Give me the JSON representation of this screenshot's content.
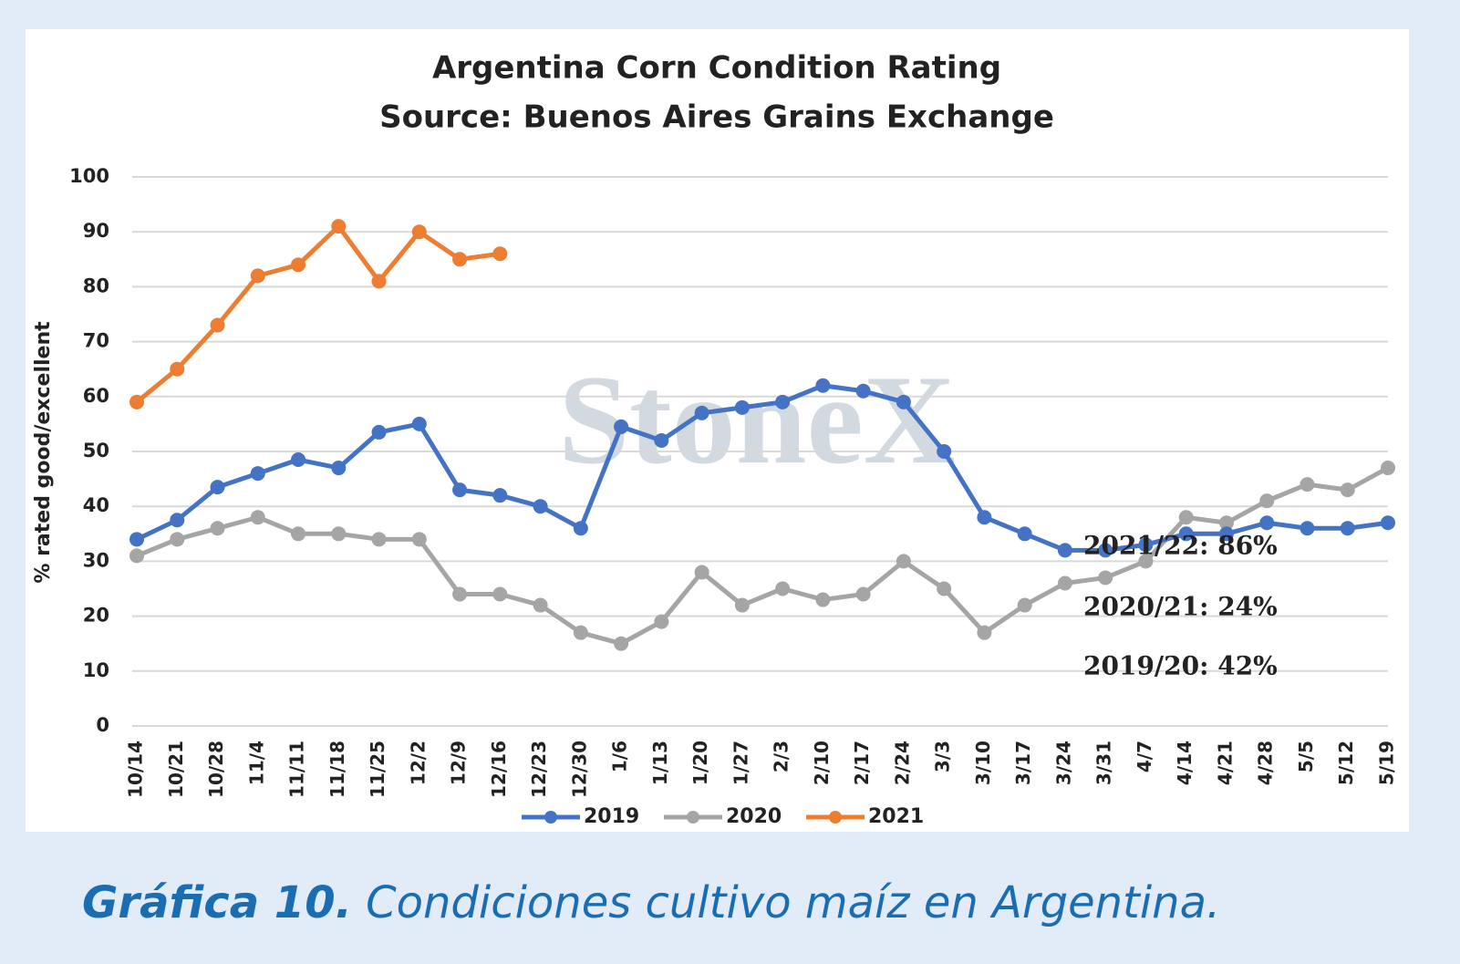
{
  "chart_data": {
    "type": "line",
    "title": "Argentina Corn Condition Rating",
    "subtitle": "Source: Buenos Aires Grains Exchange",
    "y_label": "% rated good/excellent",
    "watermark": "StoneX",
    "categories": [
      "10/14",
      "10/21",
      "10/28",
      "11/4",
      "11/11",
      "11/18",
      "11/25",
      "12/2",
      "12/9",
      "12/16",
      "12/23",
      "12/30",
      "1/6",
      "1/13",
      "1/20",
      "1/27",
      "2/3",
      "2/10",
      "2/17",
      "2/24",
      "3/3",
      "3/10",
      "3/17",
      "3/24",
      "3/31",
      "4/7",
      "4/14",
      "4/21",
      "4/28",
      "5/5",
      "5/12",
      "5/19"
    ],
    "series": [
      {
        "name": "2019",
        "color": "#4472c4",
        "values": [
          34,
          37.5,
          43.5,
          46,
          48.5,
          47,
          53.5,
          55,
          43,
          42,
          40,
          36,
          54.5,
          52,
          57,
          58,
          59,
          62,
          61,
          59,
          50,
          38,
          35,
          32,
          32,
          33,
          35,
          35,
          37,
          36,
          36,
          37
        ]
      },
      {
        "name": "2020",
        "color": "#a5a5a5",
        "values": [
          31,
          34,
          36,
          38,
          35,
          35,
          34,
          34,
          24,
          24,
          22,
          17,
          15,
          19,
          28,
          22,
          25,
          23,
          24,
          30,
          25,
          17,
          22,
          26,
          27,
          30,
          38,
          37,
          41,
          44,
          43,
          47
        ]
      },
      {
        "name": "2021",
        "color": "#ed7d31",
        "values": [
          59,
          65,
          73,
          82,
          84,
          91,
          81,
          90,
          85,
          86,
          null,
          null,
          null,
          null,
          null,
          null,
          null,
          null,
          null,
          null,
          null,
          null,
          null,
          null,
          null,
          null,
          null,
          null,
          null,
          null,
          null,
          null
        ]
      }
    ],
    "annotations": [
      "2021/22: 86%",
      "2020/21: 24%",
      "2019/20: 42%"
    ],
    "ylim": [
      0,
      100
    ],
    "yticks": [
      0,
      10,
      20,
      30,
      40,
      50,
      60,
      70,
      80,
      90,
      100
    ],
    "grid": true,
    "legend": "bottom"
  },
  "caption": {
    "label": "Gráfica 10.",
    "text": "Condiciones cultivo maíz en Argentina."
  }
}
